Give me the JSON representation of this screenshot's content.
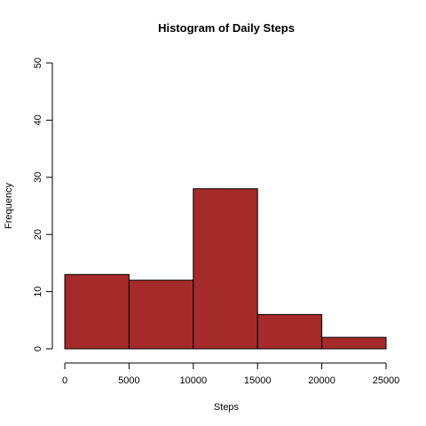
{
  "chart_data": {
    "type": "bar",
    "title": "Histogram of Daily Steps",
    "xlabel": "Steps",
    "ylabel": "Frequency",
    "bins": [
      {
        "from": 0,
        "to": 5000,
        "count": 13
      },
      {
        "from": 5000,
        "to": 10000,
        "count": 12
      },
      {
        "from": 10000,
        "to": 15000,
        "count": 28
      },
      {
        "from": 15000,
        "to": 20000,
        "count": 6
      },
      {
        "from": 20000,
        "to": 25000,
        "count": 2
      }
    ],
    "xlim": [
      0,
      25000
    ],
    "ylim": [
      0,
      50
    ],
    "xticks": [
      0,
      5000,
      10000,
      15000,
      20000,
      25000
    ],
    "yticks": [
      0,
      10,
      20,
      30,
      40,
      50
    ],
    "bar_color": "#a52a2a",
    "grid": false
  }
}
